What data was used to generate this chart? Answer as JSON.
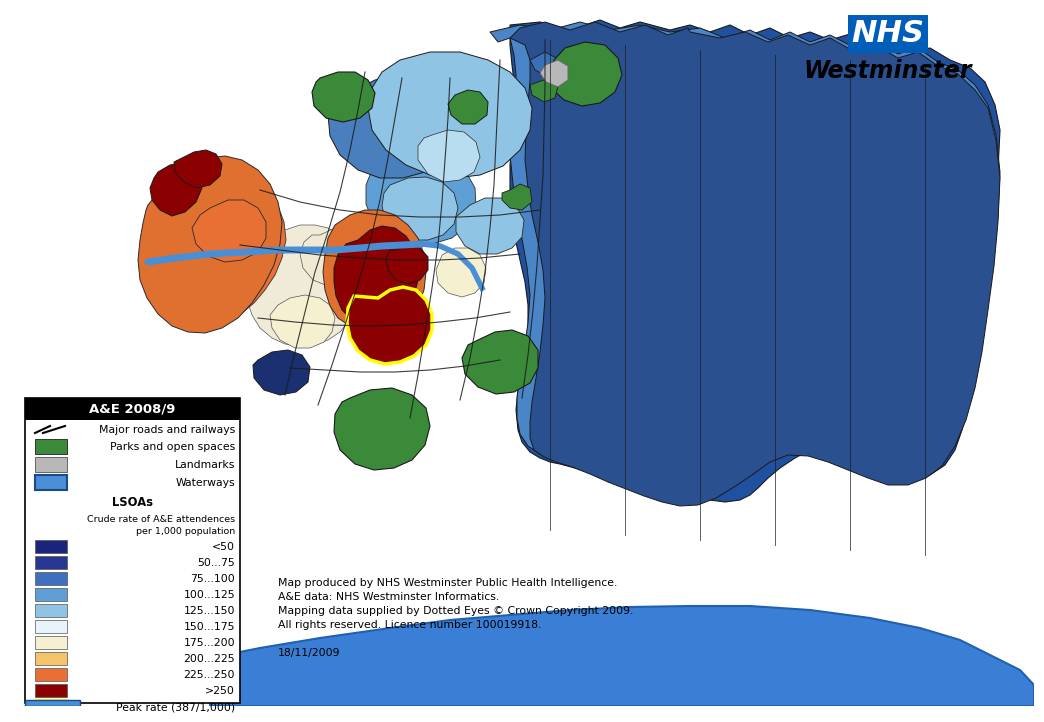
{
  "legend_title": "A&E 2008/9",
  "nhs_logo_color": "#005eb8",
  "org_name": "Westminster",
  "footnote_lines": [
    "Map produced by NHS Westminster Public Health Intelligence.",
    "A&E data: NHS Westminster Informatics.",
    "Mapping data supplied by Dotted Eyes © Crown Copyright 2009.",
    "All rights reserved. Licence number 100019918.",
    "",
    "18/11/2009"
  ],
  "background_color": "#ffffff",
  "scale_colors": [
    {
      "color": "#1a237e",
      "label": "<50"
    },
    {
      "color": "#283593",
      "label": "50...75"
    },
    {
      "color": "#3f6fbf",
      "label": "75...100"
    },
    {
      "color": "#5e9fd6",
      "label": "100...125"
    },
    {
      "color": "#90c4e4",
      "label": "125...150"
    },
    {
      "color": "#e8f4fa",
      "label": "150...175"
    },
    {
      "color": "#f5f0d0",
      "label": "175...200"
    },
    {
      "color": "#f5c46a",
      "label": "200...225"
    },
    {
      "color": "#e87035",
      "label": "225...250"
    },
    {
      "color": "#8b0000",
      "label": ">250"
    },
    {
      "color": "#8b0000",
      "label": "Peak rate (387/1,000)",
      "edgecolor": "#ffff00"
    }
  ],
  "park_color": "#3a8a3a",
  "landmark_color": "#b8b8b8",
  "waterway_color": "#4a8fd5",
  "waterway_edge": "#1a4a8a",
  "road_color": "#1a1a1a",
  "thames_color": "#3a7fd5",
  "thames_edge": "#2060b0"
}
